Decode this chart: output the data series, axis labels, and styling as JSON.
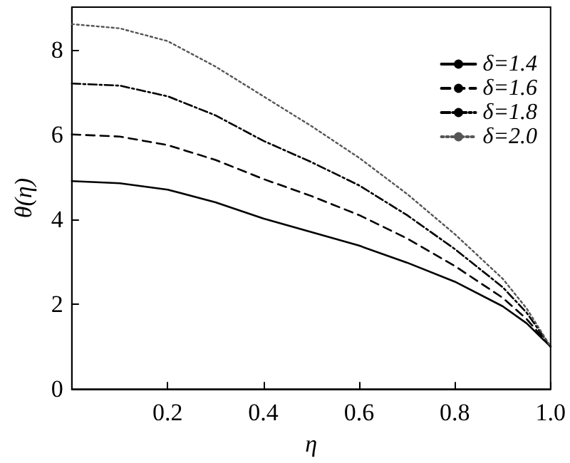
{
  "chart_data": {
    "type": "line",
    "xlabel": "η",
    "ylabel": "θ(η)",
    "x": [
      0,
      0.1,
      0.2,
      0.3,
      0.4,
      0.5,
      0.6,
      0.7,
      0.8,
      0.9,
      0.95,
      1.0
    ],
    "series": [
      {
        "name": "δ=1.4",
        "color": "#000000",
        "line_style": "solid",
        "values": [
          4.9,
          4.85,
          4.7,
          4.4,
          4.02,
          3.7,
          3.38,
          2.98,
          2.53,
          1.95,
          1.55,
          1.0
        ]
      },
      {
        "name": "δ=1.6",
        "color": "#000000",
        "line_style": "dashed",
        "values": [
          6.0,
          5.95,
          5.75,
          5.4,
          4.95,
          4.55,
          4.1,
          3.55,
          2.9,
          2.15,
          1.65,
          1.0
        ]
      },
      {
        "name": "δ=1.8",
        "color": "#000000",
        "line_style": "dashdot",
        "values": [
          7.2,
          7.15,
          6.9,
          6.45,
          5.85,
          5.35,
          4.8,
          4.1,
          3.3,
          2.4,
          1.8,
          1.0
        ]
      },
      {
        "name": "δ=2.0",
        "color": "#555555",
        "line_style": "dotted",
        "values": [
          8.6,
          8.5,
          8.2,
          7.6,
          6.9,
          6.2,
          5.45,
          4.6,
          3.65,
          2.6,
          1.9,
          1.0
        ]
      }
    ],
    "xlim": [
      0,
      1.0
    ],
    "xticks": [
      {
        "value": 0,
        "label": null
      },
      0.2,
      0.4,
      0.6,
      0.8,
      {
        "value": 1.0,
        "label": "1.0"
      }
    ],
    "ylim": [
      0,
      9
    ],
    "yticks": [
      0,
      2,
      4,
      6,
      8
    ],
    "grid": false,
    "legend": "top right",
    "marker": "none"
  }
}
